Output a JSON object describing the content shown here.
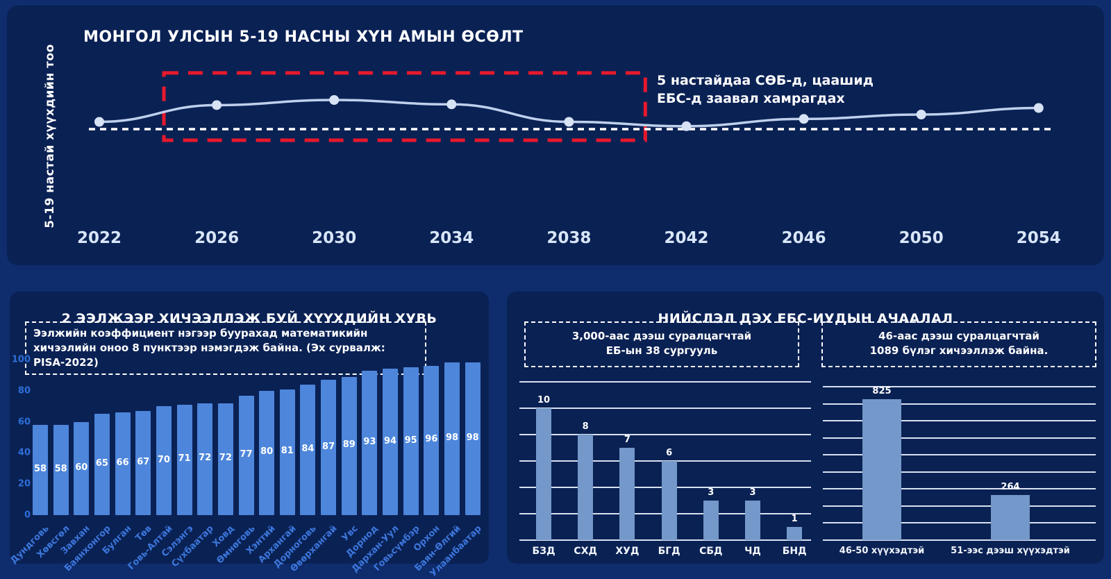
{
  "population": {
    "title": "МОНГОЛ УЛСЫН 5-19 НАСНЫ ХҮН АМЫН ӨСӨЛТ",
    "ylabel": "5-19 настай хүүхдийн тоо",
    "annotation_line1": "5 настайдаа СӨБ-д, цаашид",
    "annotation_line2": "ЕБС-д заавал хамрагдах"
  },
  "shift": {
    "title": "2 ЭЭЛЖЭЭР ХИЧЭЭЛЛЭЖ БУЙ ХҮҮХДИЙН ХУВЬ",
    "note_line1": "Ээлжийн коэффициент нэгээр буурахад математикийн",
    "note_line2": "хичээлийн оноо 8 пунктээр нэмэгдэж байна. (Эх сурвалж: PISA-2022)"
  },
  "load": {
    "title": "НИЙСЛЭЛ ДЭХ ЕБС-ИУДЫН АЧААЛАЛ",
    "note1_line1": "3,000-аас дээш суралцагчтай",
    "note1_line2": "ЕБ-ын 38 сургууль",
    "note2_line1": "46-аас дээш суралцагчтай",
    "note2_line2": "1089 бүлэг хичээллэж байна."
  },
  "colors": {
    "page_bg": "#0f2c6d",
    "panel_bg": "#0a2154",
    "accent_red": "#e8192c",
    "trend_line": "#bfd0ec",
    "trend_dot": "#d7e2f5",
    "reference_dash": "#ffffff",
    "bar_blue": "#4d86db",
    "bar_steel": "#7398c9",
    "tick_blue": "#2d6fd6",
    "category_blue": "#3c77dc"
  },
  "chart_data": [
    {
      "id": "population_line",
      "type": "line",
      "title": "МОНГОЛ УЛСЫН 5-19 НАСНЫ ХҮН АМЫН ӨСӨЛТ",
      "ylabel": "5-19 настай хүүхдийн тоо",
      "x": [
        2022,
        2026,
        2030,
        2034,
        2038,
        2042,
        2046,
        2050,
        2054
      ],
      "values_relative": [
        1.01,
        1.033,
        1.04,
        1.034,
        1.01,
        1.004,
        1.014,
        1.02,
        1.029
      ],
      "baseline_relative": 1.0,
      "units": "relative index — no numeric y-axis shown; dashed white reference line = 1.0 (2022 level)",
      "highlight_box_x_range": [
        2024.2,
        2040.6
      ],
      "annotation": "5 настайдаа СӨБ-д, цаашид ЕБС-д заавал хамрагдах",
      "grid": false,
      "legend": "none"
    },
    {
      "id": "two_shift_share",
      "type": "bar",
      "title": "2 ЭЭЛЖЭЭР ХИЧЭЭЛЛЭЖ БУЙ ХҮҮХДИЙН ХУВЬ",
      "categories": [
        "Дундговь",
        "Хөвсгөл",
        "Завхан",
        "Баянхонгор",
        "Булган",
        "Төв",
        "Говь-Алтай",
        "Сэлэнгэ",
        "Сүхбаатар",
        "Ховд",
        "Өмнөговь",
        "Хэнтий",
        "Архангай",
        "Дорноговь",
        "Өвөрхангай",
        "Увс",
        "Дорнод",
        "Дархан-Уул",
        "Говьсүмбэр",
        "Орхон",
        "Баян-Өлгий",
        "Улаанбаатар"
      ],
      "values": [
        58,
        58,
        60,
        65,
        66,
        67,
        70,
        71,
        72,
        72,
        77,
        80,
        81,
        84,
        87,
        89,
        93,
        94,
        95,
        96,
        98,
        98
      ],
      "ylim": [
        0,
        100
      ],
      "yticks": [
        0,
        20,
        40,
        60,
        80,
        100
      ],
      "grid": false,
      "annotation": "Ээлжийн коэффициент нэгээр буурахад математикийн хичээлийн оноо 8 пунктээр нэмэгдэж байна. (Эх сурвалж: PISA-2022)"
    },
    {
      "id": "schools_over_3000",
      "type": "bar",
      "title": "3,000-аас дээш суралцагчтай ЕБ-ын 38 сургууль",
      "categories": [
        "БЗД",
        "СХД",
        "ХУД",
        "БГД",
        "СБД",
        "ЧД",
        "БНД"
      ],
      "values": [
        10,
        8,
        7,
        6,
        3,
        3,
        1
      ],
      "ylim": [
        0,
        12
      ],
      "gridline_step": 2,
      "grid": true
    },
    {
      "id": "class_group_sizes",
      "type": "bar",
      "title": "46-аас дээш суралцагчтай 1089 бүлэг хичээллэж байна.",
      "categories": [
        "46-50 хүүхэдтэй",
        "51-ээс дээш хүүхэдтэй"
      ],
      "values": [
        825,
        264
      ],
      "ylim": [
        0,
        900
      ],
      "gridline_step": 100,
      "grid": true
    }
  ]
}
